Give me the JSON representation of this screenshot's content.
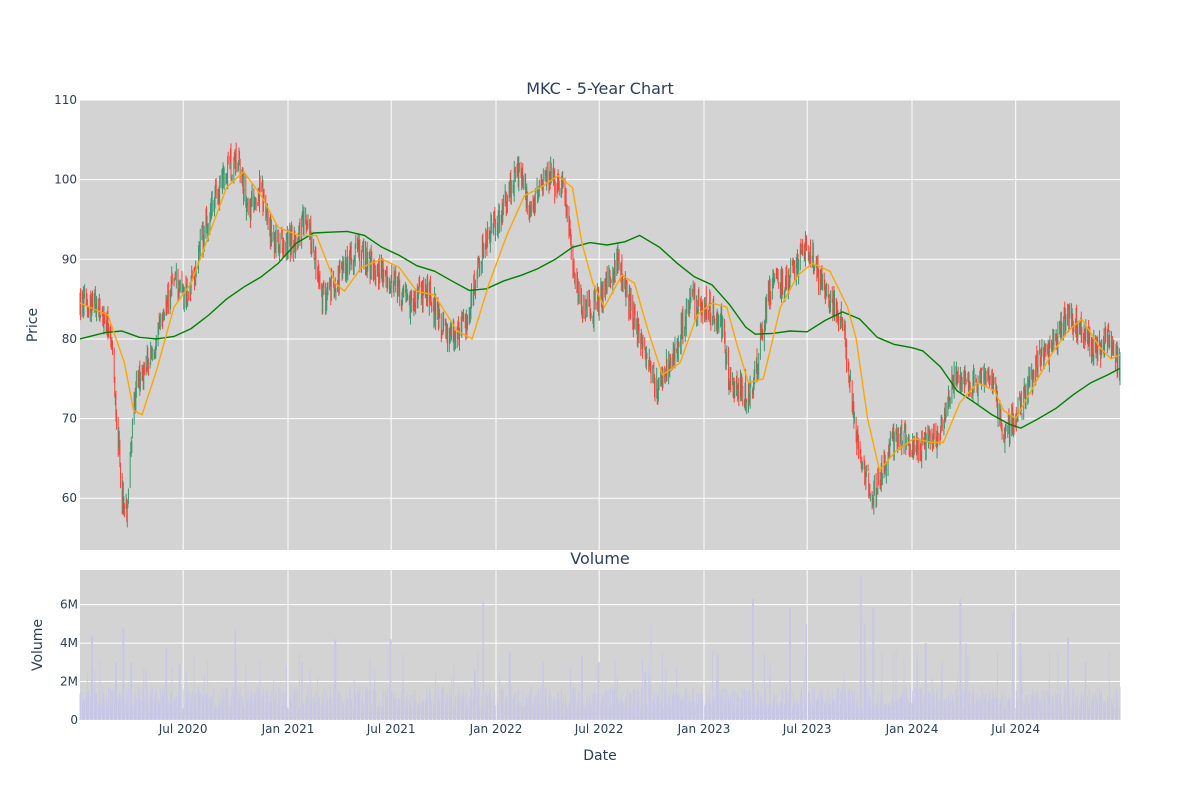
{
  "chart_data": [
    {
      "type": "candlestick",
      "title": "MKC - 5-Year Chart",
      "ylabel": "Price",
      "ylim": [
        53.5,
        110
      ],
      "yticks": [
        60,
        70,
        80,
        90,
        100,
        110
      ],
      "xlim": [
        "2020-01-02",
        "2024-12-31"
      ],
      "xticks": [
        "2020-07-01",
        "2021-01-01",
        "2021-07-01",
        "2022-01-01",
        "2022-07-01",
        "2023-01-01",
        "2023-07-01",
        "2024-01-01",
        "2024-07-01"
      ],
      "xtick_labels": [
        "Jul 2020",
        "Jan 2021",
        "Jul 2021",
        "Jan 2022",
        "Jul 2022",
        "Jan 2023",
        "Jul 2023",
        "Jan 2024",
        "Jul 2024"
      ],
      "grid": true,
      "up_color": "#3d9970",
      "down_color": "#ff4136",
      "close_trend": [
        [
          "2020-01-02",
          84.5
        ],
        [
          "2020-02-01",
          84
        ],
        [
          "2020-02-20",
          81.5
        ],
        [
          "2020-03-01",
          76
        ],
        [
          "2020-03-15",
          61
        ],
        [
          "2020-03-23",
          58
        ],
        [
          "2020-04-10",
          75
        ],
        [
          "2020-05-10",
          78
        ],
        [
          "2020-06-15",
          88
        ],
        [
          "2020-07-10",
          85
        ],
        [
          "2020-08-01",
          92
        ],
        [
          "2020-09-01",
          99
        ],
        [
          "2020-10-05",
          103
        ],
        [
          "2020-10-25",
          96
        ],
        [
          "2020-11-15",
          99
        ],
        [
          "2020-12-05",
          92
        ],
        [
          "2021-01-05",
          92
        ],
        [
          "2021-02-05",
          95
        ],
        [
          "2021-03-01",
          85
        ],
        [
          "2021-04-01",
          88
        ],
        [
          "2021-05-01",
          91
        ],
        [
          "2021-06-01",
          89
        ],
        [
          "2021-07-01",
          87
        ],
        [
          "2021-08-01",
          84
        ],
        [
          "2021-09-01",
          86
        ],
        [
          "2021-10-10",
          80
        ],
        [
          "2021-11-10",
          82
        ],
        [
          "2021-12-10",
          92
        ],
        [
          "2022-01-10",
          96
        ],
        [
          "2022-02-10",
          101
        ],
        [
          "2022-03-05",
          96
        ],
        [
          "2022-04-01",
          101
        ],
        [
          "2022-05-01",
          98
        ],
        [
          "2022-05-15",
          90
        ],
        [
          "2022-06-01",
          84
        ],
        [
          "2022-06-25",
          84
        ],
        [
          "2022-08-01",
          90
        ],
        [
          "2022-09-10",
          80
        ],
        [
          "2022-10-10",
          74
        ],
        [
          "2022-11-10",
          78
        ],
        [
          "2022-12-10",
          85
        ],
        [
          "2023-01-05",
          84
        ],
        [
          "2023-02-01",
          82
        ],
        [
          "2023-02-15",
          74
        ],
        [
          "2023-03-25",
          73
        ],
        [
          "2023-04-25",
          86
        ],
        [
          "2023-05-20",
          87
        ],
        [
          "2023-06-10",
          89
        ],
        [
          "2023-07-01",
          92
        ],
        [
          "2023-08-01",
          86
        ],
        [
          "2023-09-01",
          82
        ],
        [
          "2023-10-01",
          65
        ],
        [
          "2023-10-25",
          60
        ],
        [
          "2023-11-20",
          66
        ],
        [
          "2023-12-15",
          68
        ],
        [
          "2024-01-15",
          66
        ],
        [
          "2024-02-15",
          68
        ],
        [
          "2024-03-15",
          75
        ],
        [
          "2024-04-15",
          74
        ],
        [
          "2024-05-15",
          76
        ],
        [
          "2024-06-10",
          68
        ],
        [
          "2024-07-01",
          70
        ],
        [
          "2024-08-01",
          76
        ],
        [
          "2024-09-01",
          79
        ],
        [
          "2024-10-01",
          83
        ],
        [
          "2024-10-25",
          81
        ],
        [
          "2024-11-20",
          78
        ],
        [
          "2024-12-10",
          80
        ],
        [
          "2024-12-31",
          77
        ]
      ],
      "ma_short": {
        "color": "#ffa500",
        "points": [
          [
            "2020-01-02",
            84.5
          ],
          [
            "2020-02-20",
            83
          ],
          [
            "2020-03-20",
            77
          ],
          [
            "2020-04-05",
            71
          ],
          [
            "2020-04-20",
            70.5
          ],
          [
            "2020-05-15",
            76
          ],
          [
            "2020-06-15",
            84
          ],
          [
            "2020-07-15",
            87
          ],
          [
            "2020-08-15",
            93
          ],
          [
            "2020-09-15",
            99
          ],
          [
            "2020-10-15",
            101
          ],
          [
            "2020-11-15",
            98
          ],
          [
            "2020-12-15",
            94
          ],
          [
            "2021-01-20",
            93
          ],
          [
            "2021-02-20",
            93
          ],
          [
            "2021-03-25",
            87
          ],
          [
            "2021-04-10",
            86
          ],
          [
            "2021-05-10",
            89
          ],
          [
            "2021-06-15",
            90
          ],
          [
            "2021-07-15",
            89
          ],
          [
            "2021-08-15",
            86
          ],
          [
            "2021-09-15",
            85.5
          ],
          [
            "2021-10-25",
            81
          ],
          [
            "2021-11-20",
            80
          ],
          [
            "2021-12-20",
            87
          ],
          [
            "2022-01-20",
            93
          ],
          [
            "2022-02-20",
            98
          ],
          [
            "2022-03-20",
            99
          ],
          [
            "2022-04-20",
            100.5
          ],
          [
            "2022-05-15",
            99
          ],
          [
            "2022-06-01",
            92
          ],
          [
            "2022-06-20",
            87
          ],
          [
            "2022-07-10",
            84
          ],
          [
            "2022-08-10",
            88
          ],
          [
            "2022-09-01",
            87
          ],
          [
            "2022-09-25",
            81
          ],
          [
            "2022-10-20",
            75.5
          ],
          [
            "2022-11-20",
            77
          ],
          [
            "2022-12-20",
            83
          ],
          [
            "2023-01-15",
            84.5
          ],
          [
            "2023-02-10",
            84
          ],
          [
            "2023-03-01",
            79
          ],
          [
            "2023-03-20",
            74.5
          ],
          [
            "2023-04-15",
            75
          ],
          [
            "2023-05-15",
            84
          ],
          [
            "2023-06-15",
            88
          ],
          [
            "2023-07-10",
            89.5
          ],
          [
            "2023-08-10",
            88.5
          ],
          [
            "2023-09-10",
            84
          ],
          [
            "2023-09-25",
            80
          ],
          [
            "2023-10-15",
            70
          ],
          [
            "2023-11-05",
            63.5
          ],
          [
            "2023-12-05",
            66
          ],
          [
            "2024-01-05",
            67.5
          ],
          [
            "2024-02-05",
            67
          ],
          [
            "2024-02-25",
            67
          ],
          [
            "2024-03-25",
            72
          ],
          [
            "2024-04-25",
            74.5
          ],
          [
            "2024-05-25",
            73.5
          ],
          [
            "2024-06-10",
            71
          ],
          [
            "2024-07-01",
            70
          ],
          [
            "2024-08-01",
            74
          ],
          [
            "2024-09-01",
            78
          ],
          [
            "2024-10-01",
            81
          ],
          [
            "2024-10-25",
            82.5
          ],
          [
            "2024-11-25",
            79
          ],
          [
            "2024-12-15",
            77.5
          ],
          [
            "2024-12-31",
            78
          ]
        ]
      },
      "ma_long": {
        "color": "#008000",
        "points": [
          [
            "2020-01-02",
            80
          ],
          [
            "2020-02-15",
            80.8
          ],
          [
            "2020-03-15",
            81
          ],
          [
            "2020-04-15",
            80.2
          ],
          [
            "2020-05-15",
            80
          ],
          [
            "2020-06-15",
            80.3
          ],
          [
            "2020-07-15",
            81.3
          ],
          [
            "2020-08-15",
            83
          ],
          [
            "2020-09-15",
            85
          ],
          [
            "2020-10-15",
            86.5
          ],
          [
            "2020-11-15",
            87.8
          ],
          [
            "2020-12-15",
            89.5
          ],
          [
            "2021-01-15",
            92
          ],
          [
            "2021-02-15",
            93.3
          ],
          [
            "2021-03-15",
            93.4
          ],
          [
            "2021-04-15",
            93.5
          ],
          [
            "2021-05-15",
            93
          ],
          [
            "2021-06-15",
            91.5
          ],
          [
            "2021-07-15",
            90.5
          ],
          [
            "2021-08-15",
            89.2
          ],
          [
            "2021-09-15",
            88.5
          ],
          [
            "2021-10-15",
            87.3
          ],
          [
            "2021-11-15",
            86.1
          ],
          [
            "2021-12-15",
            86.3
          ],
          [
            "2022-01-15",
            87.3
          ],
          [
            "2022-02-15",
            88
          ],
          [
            "2022-03-15",
            88.8
          ],
          [
            "2022-04-15",
            90
          ],
          [
            "2022-05-15",
            91.5
          ],
          [
            "2022-06-15",
            92.1
          ],
          [
            "2022-07-15",
            91.8
          ],
          [
            "2022-08-15",
            92.2
          ],
          [
            "2022-09-10",
            93
          ],
          [
            "2022-10-15",
            91.5
          ],
          [
            "2022-11-15",
            89.5
          ],
          [
            "2022-12-15",
            87.8
          ],
          [
            "2023-01-15",
            86.8
          ],
          [
            "2023-02-15",
            84.3
          ],
          [
            "2023-03-15",
            81.5
          ],
          [
            "2023-04-01",
            80.6
          ],
          [
            "2023-05-01",
            80.7
          ],
          [
            "2023-06-01",
            81
          ],
          [
            "2023-07-01",
            80.9
          ],
          [
            "2023-08-01",
            82.3
          ],
          [
            "2023-09-01",
            83.4
          ],
          [
            "2023-10-01",
            82.5
          ],
          [
            "2023-11-01",
            80.2
          ],
          [
            "2023-12-01",
            79.3
          ],
          [
            "2024-01-01",
            78.9
          ],
          [
            "2024-01-20",
            78.5
          ],
          [
            "2024-02-20",
            76.5
          ],
          [
            "2024-03-20",
            73.5
          ],
          [
            "2024-04-20",
            72
          ],
          [
            "2024-05-20",
            70.5
          ],
          [
            "2024-06-20",
            69.3
          ],
          [
            "2024-07-10",
            68.8
          ],
          [
            "2024-08-10",
            70
          ],
          [
            "2024-09-10",
            71.3
          ],
          [
            "2024-10-10",
            73
          ],
          [
            "2024-11-10",
            74.5
          ],
          [
            "2024-12-10",
            75.5
          ],
          [
            "2024-12-31",
            76.3
          ]
        ]
      }
    },
    {
      "type": "bar",
      "title": "Volume",
      "xlabel": "Date",
      "ylabel": "Volume",
      "ylim": [
        0,
        7800000
      ],
      "yticks": [
        0,
        2000000,
        4000000,
        6000000
      ],
      "ytick_labels": [
        "0",
        "2M",
        "4M",
        "6M"
      ],
      "bar_color": "#c8c8e6",
      "baseline_volume": 1300000,
      "spikes": [
        [
          "2020-01-23",
          4400000
        ],
        [
          "2020-03-05",
          3000000
        ],
        [
          "2020-03-18",
          4800000
        ],
        [
          "2020-04-01",
          3000000
        ],
        [
          "2020-06-01",
          3700000
        ],
        [
          "2020-06-25",
          2900000
        ],
        [
          "2020-10-01",
          4700000
        ],
        [
          "2021-01-25",
          3000000
        ],
        [
          "2021-03-25",
          4200000
        ],
        [
          "2021-06-30",
          4200000
        ],
        [
          "2021-11-25",
          2600000
        ],
        [
          "2021-12-10",
          6200000
        ],
        [
          "2022-01-25",
          3500000
        ],
        [
          "2022-03-25",
          3000000
        ],
        [
          "2022-06-01",
          3300000
        ],
        [
          "2022-06-30",
          3000000
        ],
        [
          "2022-09-20",
          2500000
        ],
        [
          "2022-10-01",
          5000000
        ],
        [
          "2023-01-25",
          3400000
        ],
        [
          "2023-03-28",
          6300000
        ],
        [
          "2023-06-01",
          5800000
        ],
        [
          "2023-06-30",
          5000000
        ],
        [
          "2023-10-03",
          7500000
        ],
        [
          "2023-10-10",
          5000000
        ],
        [
          "2023-10-25",
          5800000
        ],
        [
          "2024-01-25",
          4000000
        ],
        [
          "2024-03-26",
          6300000
        ],
        [
          "2024-04-05",
          4000000
        ],
        [
          "2024-06-26",
          5600000
        ],
        [
          "2024-07-09",
          4000000
        ],
        [
          "2024-10-01",
          4300000
        ],
        [
          "2024-11-01",
          3000000
        ]
      ]
    }
  ]
}
